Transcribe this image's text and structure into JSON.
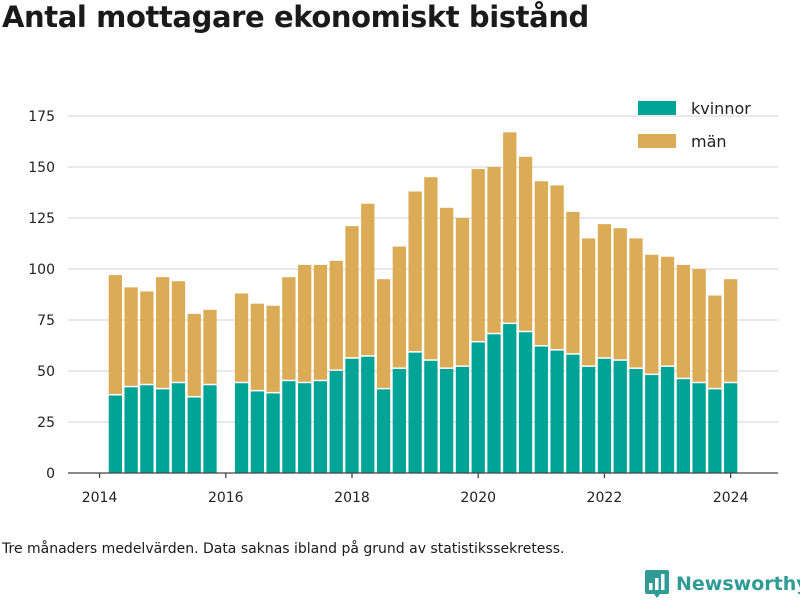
{
  "chart_data": {
    "type": "bar",
    "stacked": true,
    "title": "Antal mottagare ekonomiskt bistånd",
    "footnote": "Tre månaders medelvärden. Data saknas ibland på grund av statistikssekretess.",
    "xlabel": "",
    "ylabel": "",
    "ylim": [
      0,
      175
    ],
    "yticks": [
      0,
      25,
      50,
      75,
      100,
      125,
      150,
      175
    ],
    "xticks": [
      "2014",
      "2016",
      "2018",
      "2020",
      "2022",
      "2024"
    ],
    "xlim_years": [
      2013.5,
      2024.75
    ],
    "grid": true,
    "legend_position": "top-right",
    "x": [
      2014.25,
      2014.5,
      2014.75,
      2015.0,
      2015.25,
      2015.5,
      2015.75,
      2016.25,
      2016.5,
      2016.75,
      2017.0,
      2017.25,
      2017.5,
      2017.75,
      2018.0,
      2018.25,
      2018.5,
      2018.75,
      2019.0,
      2019.25,
      2019.5,
      2019.75,
      2020.0,
      2020.25,
      2020.5,
      2020.75,
      2021.0,
      2021.25,
      2021.5,
      2021.75,
      2022.0,
      2022.25,
      2022.5,
      2022.75,
      2023.0,
      2023.25,
      2023.5,
      2023.75,
      2024.0
    ],
    "series": [
      {
        "name": "kvinnor",
        "color": "#00a497",
        "values": [
          38,
          42,
          43,
          41,
          44,
          37,
          43,
          44,
          40,
          39,
          45,
          44,
          45,
          50,
          56,
          57,
          41,
          51,
          59,
          55,
          51,
          52,
          64,
          68,
          73,
          69,
          62,
          60,
          58,
          52,
          56,
          55,
          51,
          48,
          52,
          46,
          44,
          41,
          44
        ]
      },
      {
        "name": "män",
        "color": "#dcab55",
        "values": [
          59,
          49,
          46,
          55,
          50,
          41,
          37,
          44,
          43,
          43,
          51,
          58,
          57,
          54,
          65,
          75,
          54,
          60,
          79,
          90,
          79,
          73,
          85,
          82,
          94,
          86,
          81,
          81,
          70,
          63,
          66,
          65,
          64,
          59,
          54,
          56,
          56,
          46,
          51
        ]
      }
    ]
  },
  "brand": {
    "name": "Newsworthy",
    "icon": "bar-chart-logo-icon",
    "color": "#2e9c94"
  }
}
